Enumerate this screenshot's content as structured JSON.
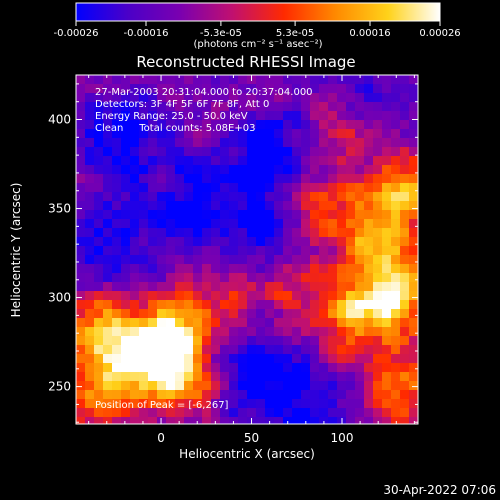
{
  "colorbar": {
    "tick_labels": [
      "-0.00026",
      "-0.00016",
      "-5.3e-05",
      "5.3e-05",
      "0.00016",
      "0.00026"
    ],
    "tick_values": [
      -0.00026,
      -0.00016,
      -5.3e-05,
      5.3e-05,
      0.00016,
      0.00026
    ],
    "range": [
      -0.00026,
      0.00026
    ],
    "unit_label": "(photons cm⁻² s⁻¹ asec⁻²)",
    "colors": [
      "#0000ff",
      "#4b00c8",
      "#7a00b0",
      "#c01070",
      "#ff2a00",
      "#ff8a00",
      "#ffd21a",
      "#ffffff"
    ]
  },
  "title": "Reconstructed RHESSI Image",
  "annotations": {
    "time_range": "27-Mar-2003 20:31:04.000 to 20:37:04.000",
    "detectors": "Detectors: 3F 4F 5F 6F 7F 8F, Att 0",
    "energy_range": "Energy Range: 25.0 - 50.0 keV",
    "clean_counts": "Clean     Total counts: 5.08E+03",
    "peak": "Position of Peak = [-6,267]"
  },
  "chart_data": {
    "type": "heatmap",
    "title": "Reconstructed RHESSI Image",
    "xlabel": "Heliocentric X (arcsec)",
    "ylabel": "Heliocentric Y (arcsec)",
    "xlim": [
      -47,
      142
    ],
    "ylim": [
      229,
      425
    ],
    "xticks": [
      0,
      50,
      100
    ],
    "yticks": [
      250,
      300,
      350,
      400
    ],
    "tick_labels_x": [
      "0",
      "50",
      "100"
    ],
    "tick_labels_y": [
      "250",
      "300",
      "350",
      "400"
    ],
    "peak_position": [
      -6,
      267
    ],
    "value_range": [
      -0.00026,
      0.00026
    ],
    "grid": false,
    "hot_regions": [
      {
        "x": -6,
        "y": 267,
        "level": 0.95
      },
      {
        "x": -30,
        "y": 280,
        "level": 0.78
      },
      {
        "x": 15,
        "y": 255,
        "level": 0.7
      },
      {
        "x": -35,
        "y": 250,
        "level": 0.65
      },
      {
        "x": 10,
        "y": 280,
        "level": 0.6
      },
      {
        "x": 130,
        "y": 300,
        "level": 0.9
      },
      {
        "x": 120,
        "y": 330,
        "level": 0.75
      },
      {
        "x": 135,
        "y": 360,
        "level": 0.7
      },
      {
        "x": 105,
        "y": 290,
        "level": 0.6
      },
      {
        "x": 90,
        "y": 350,
        "level": 0.55
      },
      {
        "x": 130,
        "y": 250,
        "level": 0.65
      },
      {
        "x": 75,
        "y": 310,
        "level": 0.45
      },
      {
        "x": 40,
        "y": 300,
        "level": 0.4
      },
      {
        "x": 100,
        "y": 395,
        "level": 0.5
      }
    ],
    "cold_regions": [
      {
        "x": 60,
        "y": 380,
        "level": -0.6
      },
      {
        "x": 20,
        "y": 350,
        "level": -0.55
      },
      {
        "x": -20,
        "y": 390,
        "level": -0.5
      },
      {
        "x": 45,
        "y": 260,
        "level": -0.55
      },
      {
        "x": 80,
        "y": 240,
        "level": -0.5
      },
      {
        "x": 65,
        "y": 330,
        "level": -0.45
      },
      {
        "x": -30,
        "y": 330,
        "level": -0.45
      },
      {
        "x": 110,
        "y": 410,
        "level": -0.4
      }
    ]
  },
  "footer": {
    "timestamp": "30-Apr-2022 07:06"
  }
}
